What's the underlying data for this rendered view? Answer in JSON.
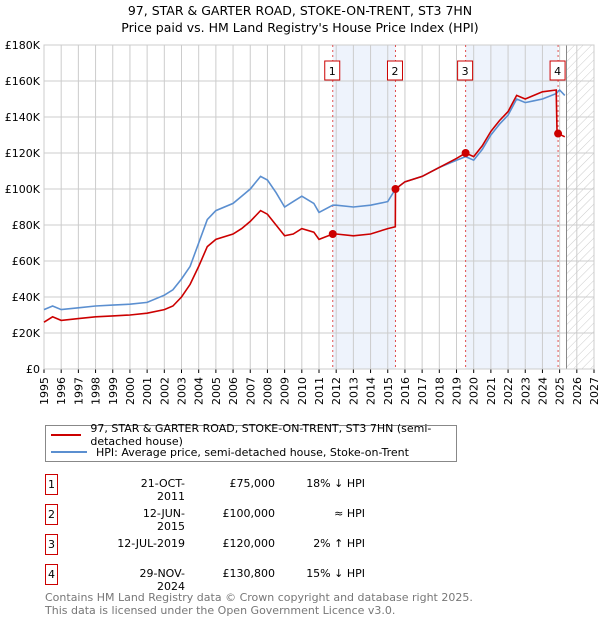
{
  "header": {
    "title_line1": "97, STAR & GARTER ROAD, STOKE-ON-TRENT, ST3 7HN",
    "title_line2": "Price paid vs. HM Land Registry's House Price Index (HPI)"
  },
  "chart_data": {
    "type": "line",
    "xlim": [
      1995,
      2027
    ],
    "ylim": [
      0,
      180000
    ],
    "xticks": [
      "1995",
      "1996",
      "1997",
      "1998",
      "1999",
      "2000",
      "2001",
      "2002",
      "2003",
      "2004",
      "2005",
      "2006",
      "2007",
      "2008",
      "2009",
      "2010",
      "2011",
      "2012",
      "2013",
      "2014",
      "2015",
      "2016",
      "2017",
      "2018",
      "2019",
      "2020",
      "2021",
      "2022",
      "2023",
      "2024",
      "2025",
      "2026",
      "2027"
    ],
    "yticks": [
      "£0",
      "£20K",
      "£40K",
      "£60K",
      "£80K",
      "£100K",
      "£120K",
      "£140K",
      "£160K",
      "£180K"
    ],
    "grid": true,
    "colors": {
      "property": "#cc0000",
      "hpi": "#5b8fd0",
      "shade": "#eef3fc"
    },
    "shaded": [
      [
        2011.8,
        2015.45
      ],
      [
        2019.53,
        2024.91
      ]
    ],
    "future_from": 2025.4,
    "series": [
      {
        "name": "97, STAR & GARTER ROAD, STOKE-ON-TRENT, ST3 7HN (semi-detached house)",
        "x": [
          1995,
          1995.5,
          1996,
          1997,
          1998,
          1999,
          2000,
          2001,
          2002,
          2002.5,
          2003,
          2003.5,
          2004,
          2004.5,
          2005,
          2006,
          2006.5,
          2007,
          2007.6,
          2008,
          2008.5,
          2009,
          2009.5,
          2010,
          2010.7,
          2011,
          2011.8,
          2012,
          2013,
          2014,
          2015,
          2015.44,
          2015.45,
          2016,
          2017,
          2018,
          2019,
          2019.53,
          2020,
          2020.5,
          2021,
          2021.5,
          2022,
          2022.5,
          2023,
          2023.5,
          2024,
          2024.8,
          2024.85,
          2024.91,
          2025.3
        ],
        "y": [
          26000,
          29000,
          27000,
          28000,
          29000,
          29500,
          30000,
          31000,
          33000,
          35000,
          40000,
          47000,
          57000,
          68000,
          72000,
          75000,
          78000,
          82000,
          88000,
          86000,
          80000,
          74000,
          75000,
          78000,
          76000,
          72000,
          75000,
          75000,
          74000,
          75000,
          78000,
          79000,
          100000,
          104000,
          107000,
          112000,
          117000,
          120000,
          118000,
          124000,
          132000,
          138000,
          143000,
          152000,
          150000,
          152000,
          154000,
          155000,
          131000,
          130800,
          129000
        ]
      },
      {
        "name": "HPI: Average price, semi-detached house, Stoke-on-Trent",
        "x": [
          1995,
          1995.5,
          1996,
          1997,
          1998,
          1999,
          2000,
          2001,
          2002,
          2002.5,
          2003,
          2003.5,
          2004,
          2004.5,
          2005,
          2006,
          2006.5,
          2007,
          2007.6,
          2008,
          2008.5,
          2009,
          2009.5,
          2010,
          2010.7,
          2011,
          2011.8,
          2012,
          2013,
          2014,
          2015,
          2015.45,
          2016,
          2017,
          2018,
          2019,
          2019.53,
          2020,
          2020.5,
          2021,
          2021.5,
          2022,
          2022.5,
          2023,
          2023.5,
          2024,
          2024.8,
          2025.0,
          2025.3
        ],
        "y": [
          33000,
          35000,
          33000,
          34000,
          35000,
          35500,
          36000,
          37000,
          41000,
          44000,
          50000,
          57000,
          70000,
          83000,
          88000,
          92000,
          96000,
          100000,
          107000,
          105000,
          98000,
          90000,
          93000,
          96000,
          92000,
          87000,
          91000,
          91000,
          90000,
          91000,
          93000,
          100000,
          104000,
          107000,
          112000,
          116000,
          118000,
          116000,
          122000,
          130000,
          136000,
          141000,
          150000,
          148000,
          149000,
          150000,
          153000,
          155000,
          152000
        ]
      }
    ],
    "sales": [
      {
        "label": "1",
        "x": 2011.8,
        "y": 75000
      },
      {
        "label": "2",
        "x": 2015.45,
        "y": 100000
      },
      {
        "label": "3",
        "x": 2019.53,
        "y": 120000
      },
      {
        "label": "4",
        "x": 2024.91,
        "y": 130800
      }
    ]
  },
  "legend": {
    "property": "97, STAR & GARTER ROAD, STOKE-ON-TRENT, ST3 7HN (semi-detached house)",
    "hpi": "HPI: Average price, semi-detached house, Stoke-on-Trent"
  },
  "transactions": [
    {
      "num": "1",
      "date": "21-OCT-2011",
      "price": "£75,000",
      "hpi": "18% ↓ HPI"
    },
    {
      "num": "2",
      "date": "12-JUN-2015",
      "price": "£100,000",
      "hpi": "≈ HPI"
    },
    {
      "num": "3",
      "date": "12-JUL-2019",
      "price": "£120,000",
      "hpi": "2% ↑ HPI"
    },
    {
      "num": "4",
      "date": "29-NOV-2024",
      "price": "£130,800",
      "hpi": "15% ↓ HPI"
    }
  ],
  "footer": {
    "line1": "Contains HM Land Registry data © Crown copyright and database right 2025.",
    "line2": "This data is licensed under the Open Government Licence v3.0."
  }
}
